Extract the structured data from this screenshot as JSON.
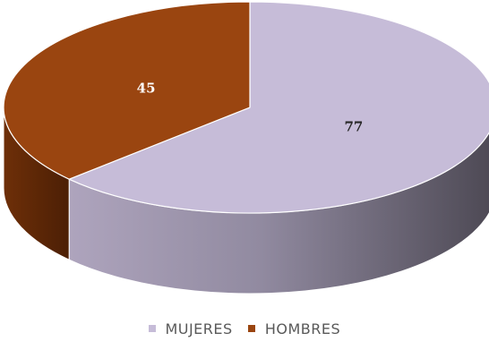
{
  "chart_data": {
    "type": "pie",
    "style": "3d",
    "categories": [
      "MUJERES",
      "HOMBRES"
    ],
    "values": [
      77,
      45
    ],
    "data_labels": [
      "77",
      "45"
    ],
    "colors": [
      "#c6bcd8",
      "#9a4510"
    ],
    "legend": "bottom"
  }
}
